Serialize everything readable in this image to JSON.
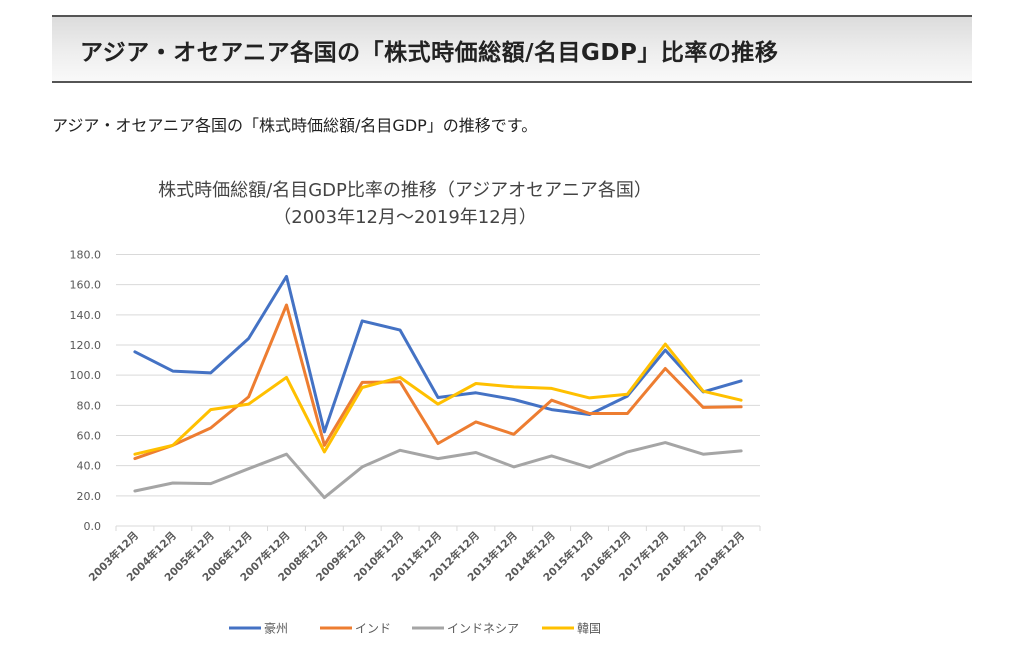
{
  "header": {
    "title": "アジア・オセアニア各国の「株式時価総額/名目GDP」比率の推移"
  },
  "intro": {
    "text": "アジア・オセアニア各国の「株式時価総額/名目GDP」の推移です。"
  },
  "chart_data": {
    "type": "line",
    "title": "株式時価総額/名目GDP比率の推移（アジアオセアニア各国）",
    "subtitle": "（2003年12月～2019年12月）",
    "xlabel": "",
    "ylabel": "",
    "ylim": [
      0,
      180
    ],
    "ytick_step": 20,
    "ytick_labels": [
      "0.0",
      "20.0",
      "40.0",
      "60.0",
      "80.0",
      "100.0",
      "120.0",
      "140.0",
      "160.0",
      "180.0"
    ],
    "grid": true,
    "legend_position": "bottom",
    "categories": [
      "2003年12月",
      "2004年12月",
      "2005年12月",
      "2006年12月",
      "2007年12月",
      "2008年12月",
      "2009年12月",
      "2010年12月",
      "2011年12月",
      "2012年12月",
      "2013年12月",
      "2014年12月",
      "2015年12月",
      "2016年12月",
      "2017年12月",
      "2018年12月",
      "2019年12月"
    ],
    "series": [
      {
        "name": "豪州",
        "color": "#4472c4",
        "values": [
          115.5,
          102.7,
          101.5,
          124.3,
          165.5,
          62.4,
          136.0,
          129.9,
          85.2,
          88.3,
          83.9,
          77.2,
          73.9,
          86.1,
          116.6,
          88.9,
          96.2
        ]
      },
      {
        "name": "インド",
        "color": "#ed7d31",
        "values": [
          44.7,
          53.5,
          65.0,
          85.6,
          146.5,
          53.5,
          95.2,
          95.6,
          54.7,
          69.0,
          60.8,
          83.4,
          74.6,
          74.6,
          104.4,
          78.6,
          79.0
        ]
      },
      {
        "name": "インドネシア",
        "color": "#a5a5a5",
        "values": [
          23.2,
          28.5,
          28.1,
          38.0,
          47.6,
          18.8,
          39.2,
          50.2,
          44.7,
          48.7,
          39.2,
          46.5,
          38.8,
          49.1,
          55.3,
          47.6,
          49.8
        ]
      },
      {
        "name": "韓国",
        "color": "#ffc000",
        "values": [
          47.6,
          53.5,
          77.2,
          80.8,
          98.5,
          49.1,
          91.8,
          98.5,
          80.8,
          94.5,
          92.2,
          91.2,
          84.9,
          87.4,
          120.6,
          89.4,
          83.4
        ]
      }
    ]
  }
}
